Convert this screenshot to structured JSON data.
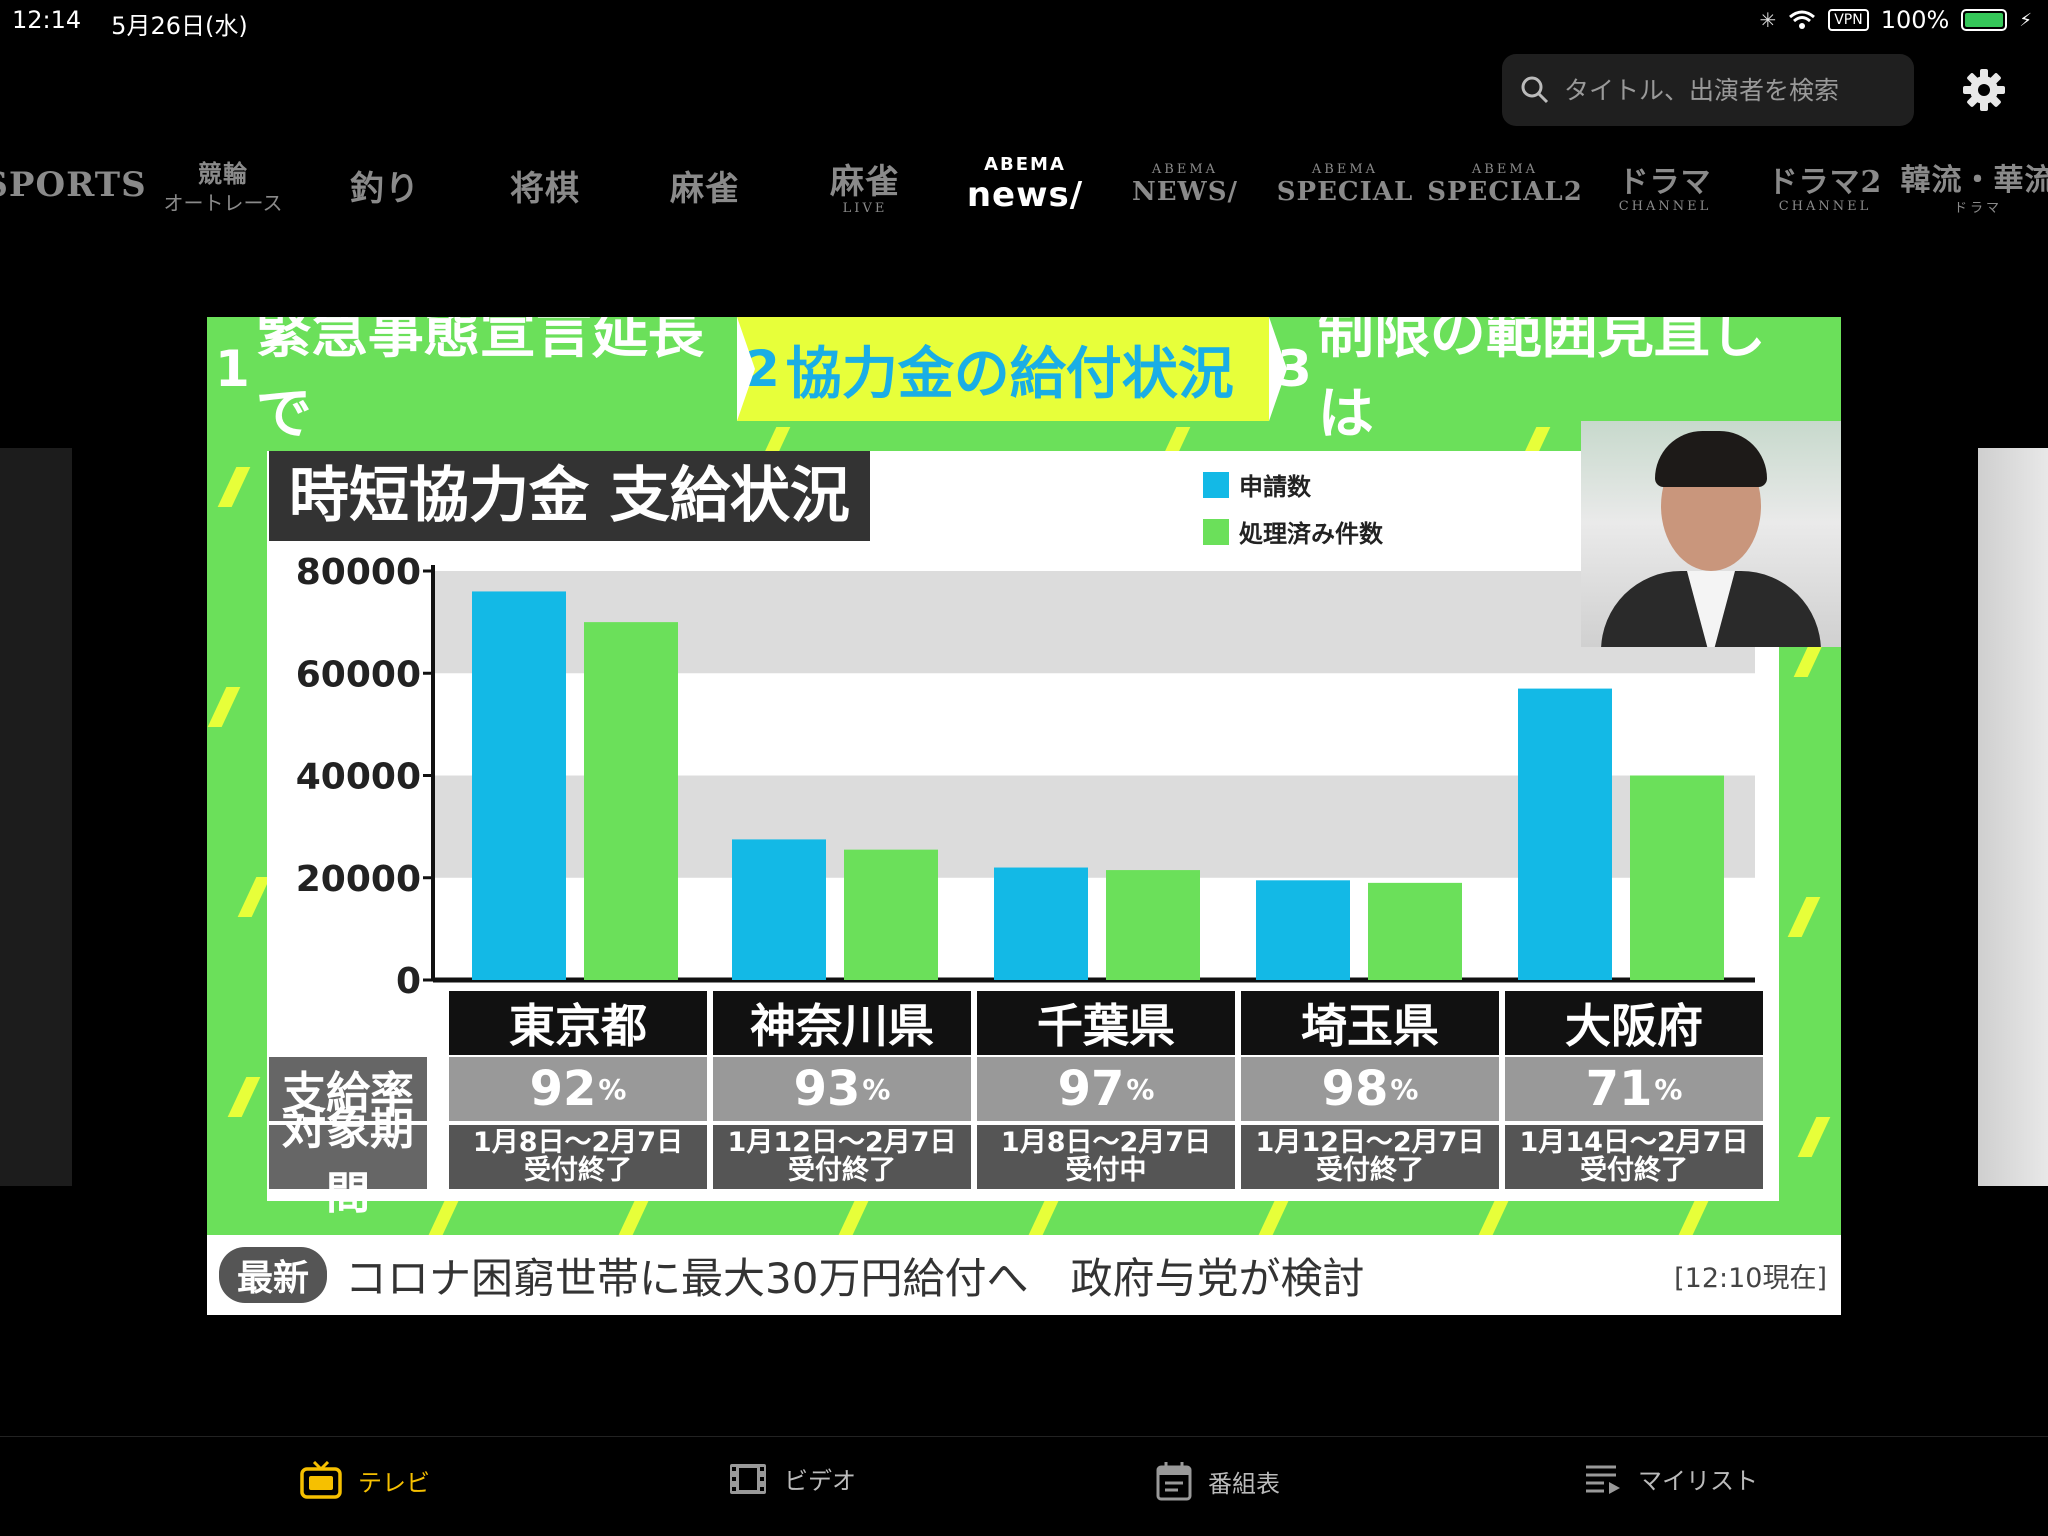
{
  "status": {
    "time": "12:14",
    "date": "5月26日(水)",
    "vpn": "VPN",
    "battery": "100%"
  },
  "search": {
    "placeholder": "タイトル、出演者を検索"
  },
  "channels": [
    {
      "main": "SPORTS",
      "sub": ""
    },
    {
      "main": "競輪",
      "sub": "オートレース"
    },
    {
      "main": "釣り",
      "sub": ""
    },
    {
      "main": "将棋",
      "sub": ""
    },
    {
      "main": "麻雀",
      "sub": ""
    },
    {
      "main": "麻雀",
      "sub": "LIVE"
    },
    {
      "main": "news/",
      "sub": "ABEMA"
    },
    {
      "main": "NEWS/",
      "sub": "ABEMA"
    },
    {
      "main": "SPECIAL",
      "sub": "ABEMA"
    },
    {
      "main": "SPECIAL2",
      "sub": "ABEMA"
    },
    {
      "main": "ドラマ",
      "sub": "CHANNEL"
    },
    {
      "main": "ドラマ2",
      "sub": "CHANNEL"
    },
    {
      "main": "韓流・華流",
      "sub": "ドラマ"
    }
  ],
  "video": {
    "tabs": [
      {
        "num": "1",
        "text": "緊急事態宣言延長で"
      },
      {
        "num": "2",
        "text": "協力金の給付状況"
      },
      {
        "num": "3",
        "text": "制限の範囲見直しは"
      }
    ],
    "chart_title": "時短協力金  支給状況",
    "ticker": {
      "badge": "最新",
      "headline": "コロナ困窮世帯に最大30万円給付へ　政府与党が検討",
      "time": "[12:10現在]"
    },
    "row_heads": {
      "rate": "支給率",
      "period": "対象期間"
    },
    "table": [
      {
        "pref": "東京都",
        "rate": "92",
        "period": "1月8日～2月7日",
        "status": "受付終了"
      },
      {
        "pref": "神奈川県",
        "rate": "93",
        "period": "1月12日～2月7日",
        "status": "受付終了"
      },
      {
        "pref": "千葉県",
        "rate": "97",
        "period": "1月8日～2月7日",
        "status": "受付中"
      },
      {
        "pref": "埼玉県",
        "rate": "98",
        "period": "1月12日～2月7日",
        "status": "受付終了"
      },
      {
        "pref": "大阪府",
        "rate": "71",
        "period": "1月14日～2月7日",
        "status": "受付終了"
      }
    ],
    "percent_sign": "%"
  },
  "chart_data": {
    "type": "bar",
    "categories": [
      "東京都",
      "神奈川県",
      "千葉県",
      "埼玉県",
      "大阪府"
    ],
    "series": [
      {
        "name": "申請数",
        "color": "#13b9e6",
        "values": [
          76000,
          27500,
          22000,
          19500,
          57000
        ]
      },
      {
        "name": "処理済み件数",
        "color": "#6be05a",
        "values": [
          70000,
          25500,
          21500,
          19000,
          40000
        ]
      }
    ],
    "yticks": [
      "80000",
      "60000",
      "40000",
      "20000",
      "0"
    ],
    "ylim": [
      0,
      80000
    ],
    "grid": true,
    "legend": "top-right"
  },
  "tabbar": [
    {
      "label": "テレビ",
      "icon": "tv-icon",
      "active": true
    },
    {
      "label": "ビデオ",
      "icon": "film-icon",
      "active": false
    },
    {
      "label": "番組表",
      "icon": "calendar-icon",
      "active": false
    },
    {
      "label": "マイリスト",
      "icon": "list-icon",
      "active": false
    }
  ]
}
